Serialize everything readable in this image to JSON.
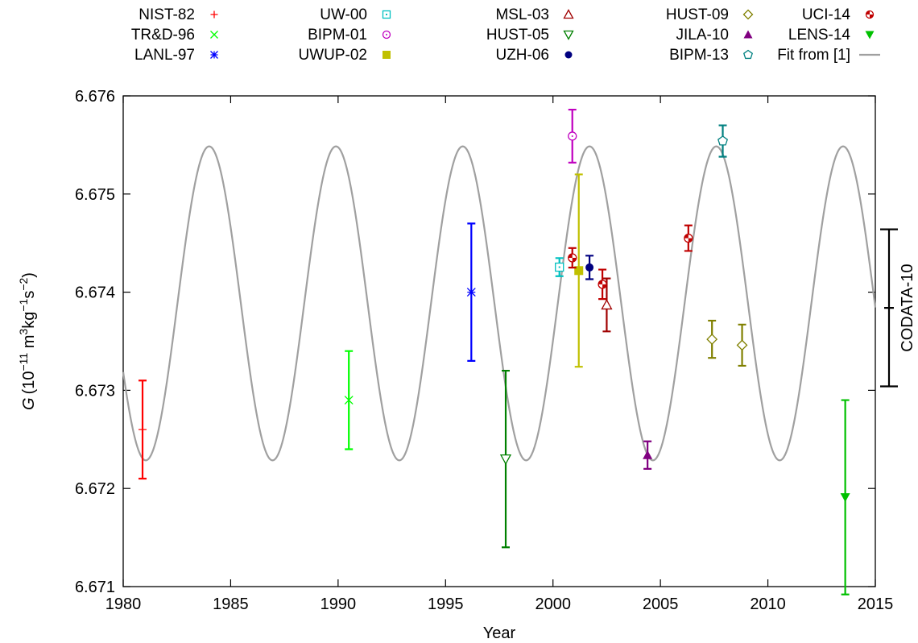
{
  "chart_data": {
    "type": "scatter",
    "xlabel": "Year",
    "ylabel_main": "G",
    "ylabel_unit_parts": [
      "(10",
      "−11",
      " m",
      "3",
      "kg",
      "−1",
      "s",
      "−2",
      ")"
    ],
    "xlim": [
      1980,
      2015
    ],
    "ylim": [
      6.671,
      6.676
    ],
    "xticks": [
      "1980",
      "1985",
      "1990",
      "1995",
      "2000",
      "2005",
      "2010",
      "2015"
    ],
    "yticks": [
      "6.671",
      "6.672",
      "6.673",
      "6.674",
      "6.675",
      "6.676"
    ],
    "grid": false,
    "legend_position": "top",
    "series": [
      {
        "name": "NIST-82",
        "color": "#ff0000",
        "marker": "plus",
        "x": 1980.9,
        "y": 6.6726,
        "err": 0.0005
      },
      {
        "name": "TR&D-96",
        "color": "#00ff00",
        "marker": "cross",
        "x": 1990.5,
        "y": 6.6729,
        "err": 0.0005
      },
      {
        "name": "LANL-97",
        "color": "#0000ff",
        "marker": "star",
        "x": 1996.2,
        "y": 6.674,
        "err": 0.0007
      },
      {
        "name": "UW-00",
        "color": "#00c0c0",
        "marker": "square-open",
        "x": 2000.3,
        "y": 6.674255,
        "err": 9.2e-05
      },
      {
        "name": "BIPM-01",
        "color": "#c000c0",
        "marker": "circle-open",
        "x": 2000.9,
        "y": 6.67559,
        "err": 0.00027
      },
      {
        "name": "UWUP-02",
        "color": "#c0c000",
        "marker": "square-filled",
        "x": 2001.2,
        "y": 6.67422,
        "err": 0.00098
      },
      {
        "name": "MSL-03",
        "color": "#a00000",
        "marker": "triangle-open",
        "x": 2002.5,
        "y": 6.67387,
        "err": 0.00027
      },
      {
        "name": "HUST-05",
        "color": "#008000",
        "marker": "triangle-down-open",
        "x": 1997.8,
        "y": 6.6723,
        "err": 0.0009
      },
      {
        "name": "UZH-06",
        "color": "#000080",
        "marker": "circle-filled",
        "x": 2001.7,
        "y": 6.674252,
        "err": 0.00012
      },
      {
        "name": "HUST-09",
        "color": "#808000",
        "marker": "diamond-open",
        "x": 2007.4,
        "y": 6.67352,
        "err": 0.00019
      },
      {
        "name": "JILA-10",
        "color": "#800080",
        "marker": "triangle-filled",
        "x": 2004.4,
        "y": 6.67234,
        "err": 0.00014
      },
      {
        "name": "BIPM-13",
        "color": "#008080",
        "marker": "pentagon-open",
        "x": 2007.9,
        "y": 6.67554,
        "err": 0.00016
      },
      {
        "name": "UCI-14",
        "color": "#c00000",
        "marker": "circle-dot",
        "x": 2006.3,
        "y": 6.67455,
        "err": 0.00013
      },
      {
        "name": "LENS-14",
        "color": "#00c000",
        "marker": "triangle-down-filled",
        "x": 2013.6,
        "y": 6.67191,
        "err": 0.00099
      }
    ],
    "extra_points": [
      {
        "series": "UCI-14",
        "x": 2000.9,
        "y": 6.67435,
        "err": 0.0001
      },
      {
        "series": "UCI-14",
        "x": 2002.3,
        "y": 6.67408,
        "err": 0.00015
      },
      {
        "series": "HUST-09",
        "x": 2008.8,
        "y": 6.67346,
        "err": 0.00021
      }
    ],
    "fit": {
      "name": "Fit from [1]",
      "color": "#a0a0a0",
      "mean": 6.673886,
      "amplitude": 0.0016,
      "period_years": 5.9,
      "peak_year": 1984.0
    },
    "codata": {
      "label": "CODATA-10",
      "value": 6.67384,
      "uncertainty": 0.0008
    }
  }
}
